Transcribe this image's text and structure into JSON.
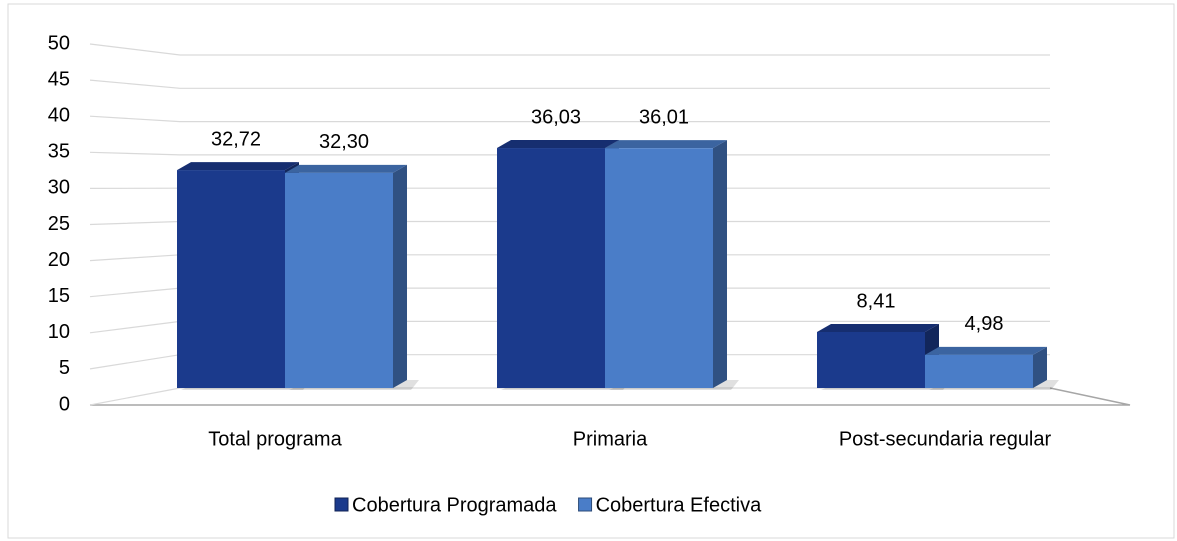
{
  "chart_data": {
    "type": "bar3d",
    "categories": [
      "Total programa",
      "Primaria",
      "Post-secundaria regular"
    ],
    "series": [
      {
        "name": "Cobertura Programada",
        "color": "#1b3a8c",
        "values": [
          32.72,
          36.03,
          8.41
        ],
        "value_labels": [
          "32,72",
          "36,03",
          "8,41"
        ]
      },
      {
        "name": "Cobertura Efectiva",
        "color": "#4a7dc8",
        "values": [
          32.3,
          36.01,
          4.98
        ],
        "value_labels": [
          "32,30",
          "36,01",
          "4,98"
        ]
      }
    ],
    "ylim": [
      0,
      50
    ],
    "yticks": [
      0,
      5,
      10,
      15,
      20,
      25,
      30,
      35,
      40,
      45,
      50
    ],
    "grid": true,
    "legend": "bottom"
  }
}
